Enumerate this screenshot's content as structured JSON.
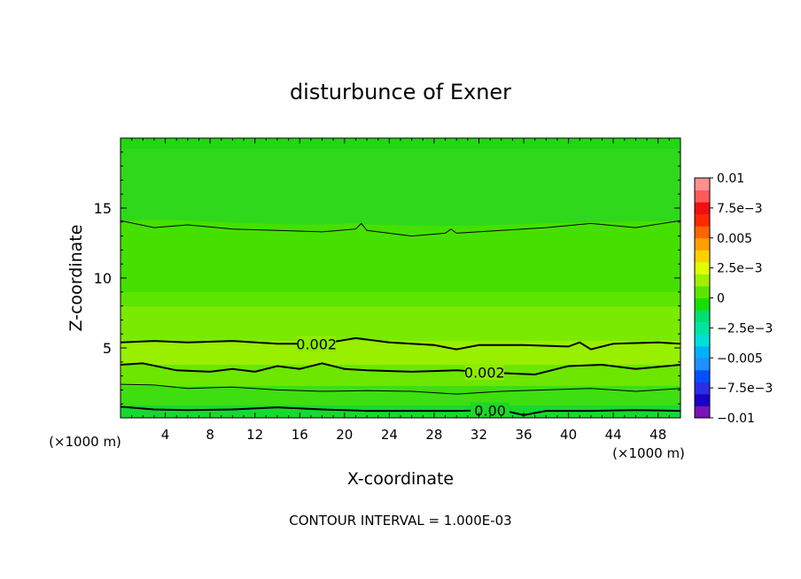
{
  "chart_data": {
    "type": "contour",
    "title": "disturbunce of Exner",
    "xlabel": "X-coordinate",
    "ylabel": "Z-coordinate",
    "x_unit_left": "(×1000 m)",
    "x_unit_right": "(×1000 m)",
    "xlim": [
      0,
      50
    ],
    "ylim": [
      0,
      20
    ],
    "x_ticks": [
      4,
      8,
      12,
      16,
      20,
      24,
      28,
      32,
      36,
      40,
      44,
      48
    ],
    "y_ticks": [
      5,
      10,
      15
    ],
    "colorbar": {
      "labels": [
        "0.01",
        "7.5e-3",
        "0.005",
        "2.5e-3",
        "0",
        "-2.5e-3",
        "-0.005",
        "-7.5e-3",
        "-0.01"
      ],
      "min": -0.01,
      "max": 0.01,
      "colors": [
        "#7a14b4",
        "#1a00c8",
        "#2d2de6",
        "#0050ff",
        "#1e90ff",
        "#00b0ff",
        "#00e0d8",
        "#00e6a0",
        "#00e070",
        "#16e000",
        "#5ae600",
        "#a0f000",
        "#e0ff00",
        "#ffd000",
        "#ffa000",
        "#ff6400",
        "#ff2800",
        "#f01010",
        "#ff5a5a",
        "#ff9090"
      ]
    },
    "contours": [
      {
        "level": 0.0,
        "points": [
          [
            0,
            0.8
          ],
          [
            3,
            0.6
          ],
          [
            6,
            0.55
          ],
          [
            10,
            0.6
          ],
          [
            14,
            0.75
          ],
          [
            18,
            0.6
          ],
          [
            22,
            0.5
          ],
          [
            26,
            0.5
          ],
          [
            30,
            0.5
          ],
          [
            34,
            0.55
          ],
          [
            36,
            0.2
          ],
          [
            38,
            0.5
          ],
          [
            42,
            0.5
          ],
          [
            46,
            0.55
          ],
          [
            50,
            0.5
          ]
        ],
        "label": "0.00",
        "label_x": 33,
        "weight": "bold"
      },
      {
        "level": 0.001,
        "points": [
          [
            0,
            2.4
          ],
          [
            3,
            2.35
          ],
          [
            6,
            2.1
          ],
          [
            10,
            2.2
          ],
          [
            14,
            2.0
          ],
          [
            18,
            1.9
          ],
          [
            22,
            1.95
          ],
          [
            26,
            1.9
          ],
          [
            30,
            1.7
          ],
          [
            34,
            1.9
          ],
          [
            38,
            2.0
          ],
          [
            42,
            2.1
          ],
          [
            46,
            1.9
          ],
          [
            50,
            2.1
          ]
        ],
        "weight": "thin"
      },
      {
        "level": 0.002,
        "points": [
          [
            0,
            3.8
          ],
          [
            2,
            3.9
          ],
          [
            5,
            3.4
          ],
          [
            8,
            3.3
          ],
          [
            10,
            3.5
          ],
          [
            12,
            3.3
          ],
          [
            14,
            3.7
          ],
          [
            16,
            3.5
          ],
          [
            18,
            3.9
          ],
          [
            20,
            3.5
          ],
          [
            22,
            3.4
          ],
          [
            26,
            3.3
          ],
          [
            30,
            3.4
          ],
          [
            34,
            3.2
          ],
          [
            37,
            3.1
          ],
          [
            40,
            3.7
          ],
          [
            43,
            3.8
          ],
          [
            46,
            3.5
          ],
          [
            50,
            3.8
          ]
        ],
        "label": "0.002",
        "label_x": 32.5,
        "weight": "bold"
      },
      {
        "level": 0.002,
        "points": [
          [
            0,
            5.4
          ],
          [
            3,
            5.5
          ],
          [
            6,
            5.4
          ],
          [
            10,
            5.5
          ],
          [
            14,
            5.3
          ],
          [
            18,
            5.3
          ],
          [
            21,
            5.7
          ],
          [
            24,
            5.4
          ],
          [
            28,
            5.2
          ],
          [
            30,
            4.9
          ],
          [
            32,
            5.2
          ],
          [
            36,
            5.2
          ],
          [
            40,
            5.1
          ],
          [
            41,
            5.4
          ],
          [
            42,
            4.9
          ],
          [
            44,
            5.3
          ],
          [
            48,
            5.4
          ],
          [
            50,
            5.3
          ]
        ],
        "label": "0.002",
        "label_x": 17.5,
        "weight": "bold"
      },
      {
        "level": 0.001,
        "points": [
          [
            0,
            14.1
          ],
          [
            3,
            13.6
          ],
          [
            6,
            13.8
          ],
          [
            10,
            13.5
          ],
          [
            14,
            13.4
          ],
          [
            18,
            13.3
          ],
          [
            21,
            13.5
          ],
          [
            21.5,
            13.9
          ],
          [
            22,
            13.4
          ],
          [
            26,
            13.0
          ],
          [
            29,
            13.2
          ],
          [
            29.5,
            13.5
          ],
          [
            30,
            13.2
          ],
          [
            34,
            13.4
          ],
          [
            38,
            13.6
          ],
          [
            42,
            13.9
          ],
          [
            46,
            13.6
          ],
          [
            50,
            14.1
          ]
        ],
        "weight": "thin"
      }
    ],
    "grid": false,
    "legend_placement": "right colorbar"
  },
  "footer": "CONTOUR INTERVAL = 1.000E-03"
}
